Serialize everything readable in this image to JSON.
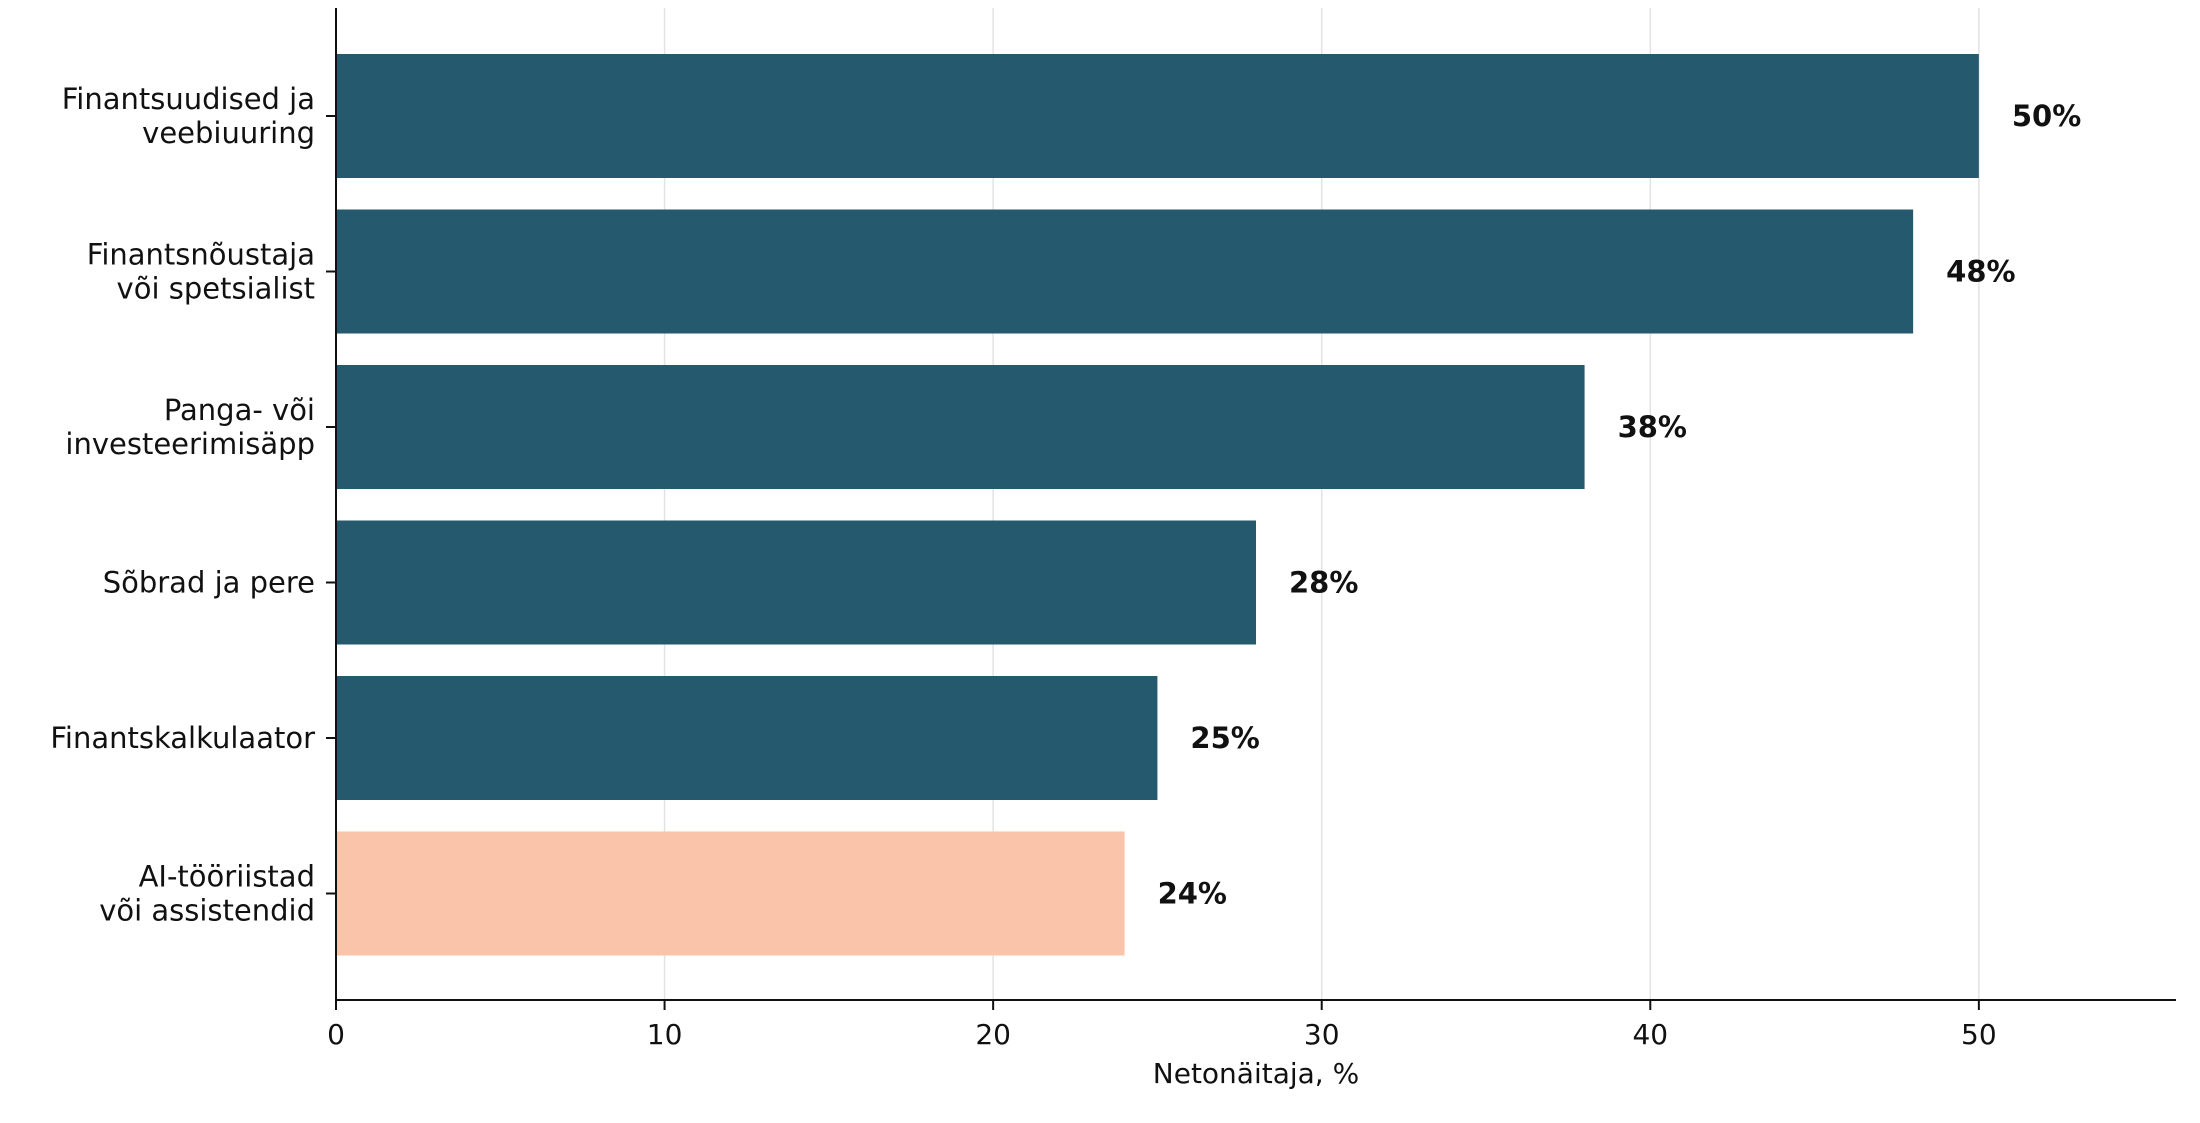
{
  "chart_data": {
    "type": "bar",
    "orientation": "horizontal",
    "categories": [
      [
        "Finantsuudised ja",
        "veebiuuring"
      ],
      [
        "Finantsnõustaja",
        "või spetsialist"
      ],
      [
        "Panga- või",
        "investeerimisäpp"
      ],
      [
        "Sõbrad ja pere"
      ],
      [
        "Finantskalkulaator"
      ],
      [
        "AI-tööriistad",
        "või assistendid"
      ]
    ],
    "values": [
      50,
      48,
      38,
      28,
      25,
      24
    ],
    "value_labels": [
      "50%",
      "48%",
      "38%",
      "28%",
      "25%",
      "24%"
    ],
    "bar_colors": [
      "#255a6e",
      "#255a6e",
      "#255a6e",
      "#255a6e",
      "#255a6e",
      "#f9c4aa"
    ],
    "xlabel": "Netonäitaja, %",
    "ylabel": "",
    "title": "",
    "xlim": [
      0,
      56
    ],
    "xticks": [
      0,
      10,
      20,
      30,
      40,
      50
    ],
    "grid": "vertical"
  }
}
